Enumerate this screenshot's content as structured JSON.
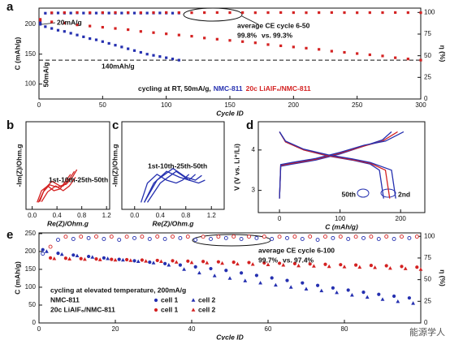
{
  "chart_data": [
    {
      "type": "scatter",
      "panel": "a",
      "xlabel": "Cycle ID",
      "ylabel": "C (mAh/g)",
      "y2label": "η (%)",
      "xlim": [
        0,
        300
      ],
      "xticks": [
        0,
        50,
        100,
        150,
        200,
        250,
        300
      ],
      "ylim": [
        75,
        227
      ],
      "yticks": [
        100,
        150,
        200
      ],
      "y2lim": [
        0,
        105
      ],
      "y2ticks": [
        0,
        25,
        50,
        75,
        100
      ],
      "refline": 140,
      "annotations": [
        "20mA/g",
        "50mA/g",
        "140mAh/g",
        "average CE cycle 6-50",
        "99.8%",
        "vs.",
        "99.3%",
        "cycling at RT, 50mA/g,"
      ],
      "series": [
        {
          "name": "NMC-811",
          "color": "#2530b0",
          "marker": "square",
          "x": [
            1,
            5,
            10,
            15,
            20,
            25,
            30,
            35,
            40,
            45,
            50,
            55,
            60,
            65,
            70,
            75,
            80,
            85,
            90,
            95,
            100,
            105,
            110
          ],
          "values": [
            200,
            196,
            193,
            190,
            188,
            185,
            182,
            179,
            176,
            174,
            171,
            168,
            165,
            162,
            159,
            156,
            153,
            150,
            148,
            146,
            144,
            142,
            140
          ]
        },
        {
          "name": "20c LiAlF₆/NMC-811",
          "color": "#d42222",
          "marker": "square",
          "x": [
            1,
            10,
            20,
            30,
            40,
            50,
            60,
            70,
            80,
            90,
            100,
            110,
            120,
            130,
            140,
            150,
            160,
            170,
            180,
            190,
            200,
            210,
            220,
            230,
            240,
            250,
            260,
            270,
            280,
            290,
            300
          ],
          "values": [
            206,
            204,
            202,
            199,
            197,
            195,
            193,
            191,
            188,
            186,
            184,
            182,
            180,
            177,
            175,
            173,
            171,
            169,
            166,
            164,
            162,
            160,
            158,
            155,
            153,
            151,
            149,
            147,
            144,
            142,
            140
          ]
        },
        {
          "color": "#2530b0",
          "marker": "square",
          "axis": "y2",
          "x": [
            1,
            5,
            10,
            15,
            20,
            25,
            30,
            35,
            40,
            45,
            50,
            55,
            60,
            65,
            70,
            75,
            80,
            85,
            90,
            95,
            100,
            105,
            110
          ],
          "values": [
            88,
            99.1,
            99.3,
            99.4,
            99.2,
            99.3,
            99.5,
            99.3,
            99.2,
            99.3,
            99.4,
            99.3,
            99.2,
            99.3,
            99.4,
            99.3,
            99.2,
            99.3,
            99.3,
            99.4,
            99.3,
            99.2,
            99.3
          ]
        },
        {
          "color": "#d42222",
          "marker": "square",
          "axis": "y2",
          "x": [
            1,
            10,
            20,
            30,
            40,
            50,
            60,
            70,
            80,
            90,
            100,
            110,
            120,
            130,
            140,
            150,
            160,
            170,
            180,
            190,
            200,
            210,
            220,
            230,
            240,
            250,
            260,
            270,
            280,
            290,
            300
          ],
          "values": [
            92,
            99.6,
            99.8,
            99.9,
            99.7,
            99.8,
            99.9,
            99.8,
            99.7,
            99.8,
            99.9,
            99.8,
            99.7,
            99.8,
            99.9,
            99.8,
            99.8,
            99.7,
            99.8,
            99.9,
            99.8,
            99.7,
            99.8,
            99.9,
            99.8,
            99.7,
            99.8,
            99.8,
            99.9,
            99.8,
            99.7
          ]
        }
      ]
    },
    {
      "type": "line",
      "panel": "b",
      "xlabel": "Re(Z)/Ohm.g",
      "ylabel": "-Im(Z)/Ohm.g",
      "xlim": [
        -0.1,
        1.25
      ],
      "xticks": [
        {
          "value": 0,
          "label": "0.0"
        },
        0.4,
        0.8,
        1.2
      ],
      "ylim": [
        -0.1,
        1.4
      ],
      "annotations": [
        "1st-10th-25th-50th"
      ],
      "series": [
        {
          "color": "#d42222",
          "x": [
            0.08,
            0.15,
            0.25,
            0.35,
            0.45,
            0.55,
            0.62
          ],
          "values": [
            0.02,
            0.22,
            0.3,
            0.22,
            0.25,
            0.4,
            0.5
          ]
        },
        {
          "color": "#d42222",
          "x": [
            0.1,
            0.18,
            0.28,
            0.4,
            0.5,
            0.6,
            0.68
          ],
          "values": [
            0.02,
            0.2,
            0.32,
            0.28,
            0.3,
            0.42,
            0.55
          ]
        },
        {
          "color": "#d42222",
          "x": [
            0.12,
            0.2,
            0.32,
            0.45,
            0.55,
            0.65,
            0.72
          ],
          "values": [
            0.03,
            0.25,
            0.38,
            0.3,
            0.33,
            0.45,
            0.58
          ]
        },
        {
          "color": "#d42222",
          "x": [
            0.15,
            0.25,
            0.38,
            0.5,
            0.6,
            0.7
          ],
          "values": [
            0.03,
            0.2,
            0.3,
            0.22,
            0.3,
            0.45
          ]
        }
      ]
    },
    {
      "type": "line",
      "panel": "c",
      "xlabel": "Re(Z)/Ohm.g",
      "ylabel": "-Im(Z)/Ohm.g",
      "xlim": [
        -0.2,
        1.4
      ],
      "xticks": [
        {
          "value": 0,
          "label": "0.0"
        },
        0.4,
        0.8,
        1.2
      ],
      "ylim": [
        -0.1,
        1.4
      ],
      "annotations": [
        "1st-10th-25th-50th"
      ],
      "series": [
        {
          "color": "#2530b0",
          "x": [
            0.1,
            0.2,
            0.35,
            0.5,
            0.65,
            0.75,
            0.85
          ],
          "values": [
            0.02,
            0.35,
            0.5,
            0.4,
            0.35,
            0.4,
            0.5
          ]
        },
        {
          "color": "#2530b0",
          "x": [
            0.15,
            0.3,
            0.5,
            0.7,
            0.85,
            0.95
          ],
          "values": [
            0.02,
            0.35,
            0.55,
            0.45,
            0.4,
            0.5
          ]
        },
        {
          "color": "#2530b0",
          "x": [
            0.15,
            0.35,
            0.6,
            0.8,
            0.95,
            1.05
          ],
          "values": [
            0.02,
            0.4,
            0.6,
            0.45,
            0.4,
            0.48
          ]
        },
        {
          "color": "#2530b0",
          "x": [
            0.2,
            0.4,
            0.65,
            0.85,
            1.0,
            1.1
          ],
          "values": [
            0.02,
            0.35,
            0.55,
            0.4,
            0.35,
            0.4
          ]
        }
      ]
    },
    {
      "type": "line",
      "panel": "d",
      "xlabel": "C (mAh/g)",
      "ylabel": "V (V vs. Li⁺/Li)",
      "xlim": [
        -35,
        240
      ],
      "xticks": [
        0,
        100,
        200
      ],
      "ylim": [
        2.45,
        4.7
      ],
      "yticks": [
        3,
        4
      ],
      "annotations": [
        "50th",
        "2nd"
      ],
      "series": [
        {
          "color": "#2530b0",
          "x": [
            0,
            2,
            20,
            60,
            100,
            140,
            170,
            185
          ],
          "values": [
            2.8,
            3.6,
            3.65,
            3.75,
            3.9,
            4.1,
            4.25,
            4.45
          ]
        },
        {
          "color": "#d42222",
          "x": [
            0,
            2,
            20,
            60,
            100,
            140,
            170,
            195
          ],
          "values": [
            2.8,
            3.62,
            3.67,
            3.77,
            3.92,
            4.1,
            4.22,
            4.45
          ]
        },
        {
          "color": "#2530b0",
          "x": [
            0,
            2,
            20,
            60,
            100,
            140,
            175,
            205
          ],
          "values": [
            2.8,
            3.64,
            3.69,
            3.79,
            3.94,
            4.12,
            4.22,
            4.45
          ]
        },
        {
          "color": "#2530b0",
          "x": [
            0,
            10,
            40,
            80,
            120,
            150,
            165,
            172
          ],
          "values": [
            4.45,
            4.2,
            4.0,
            3.85,
            3.75,
            3.65,
            3.5,
            2.8
          ]
        },
        {
          "color": "#d42222",
          "x": [
            0,
            10,
            40,
            80,
            120,
            150,
            175,
            182
          ],
          "values": [
            4.45,
            4.2,
            4.0,
            3.86,
            3.76,
            3.67,
            3.5,
            2.8
          ]
        },
        {
          "color": "#2530b0",
          "x": [
            0,
            10,
            40,
            80,
            120,
            150,
            185,
            192
          ],
          "values": [
            4.45,
            4.22,
            4.02,
            3.88,
            3.78,
            3.69,
            3.5,
            2.8
          ]
        }
      ]
    },
    {
      "type": "scatter",
      "panel": "e",
      "xlabel": "Cycle ID",
      "ylabel": "C (mAh/g)",
      "y2label": "η (%)",
      "xlim": [
        0,
        100
      ],
      "xticks": [
        0,
        20,
        40,
        60,
        80
      ],
      "ylim": [
        0,
        252
      ],
      "yticks": [
        0,
        50,
        100,
        150,
        200,
        250
      ],
      "y2lim": [
        0,
        104
      ],
      "y2ticks": [
        0,
        25,
        50,
        75,
        100
      ],
      "annotations": [
        "cycling at elevated temperature, 200mA/g",
        "NMC-811",
        "20c LiAlF₆/NMC-811",
        "average CE cycle 6-100",
        "99.7%",
        "vs.",
        "97.4%"
      ],
      "series": [
        {
          "name": "cell 1",
          "color": "#2530b0",
          "marker": "circle",
          "x": [
            1,
            5,
            9,
            13,
            17,
            21,
            25,
            29,
            33,
            37,
            41,
            45,
            49,
            53,
            57,
            61,
            65,
            69,
            73,
            77,
            81,
            85,
            89,
            93,
            97
          ],
          "values": [
            205,
            195,
            190,
            186,
            182,
            178,
            174,
            170,
            166,
            162,
            157,
            152,
            147,
            140,
            133,
            126,
            119,
            112,
            105,
            98,
            92,
            86,
            80,
            75,
            70
          ]
        },
        {
          "name": "cell 2",
          "color": "#2530b0",
          "marker": "triangle",
          "x": [
            2,
            6,
            10,
            14,
            18,
            22,
            26,
            30,
            34,
            38,
            42,
            46,
            50,
            54,
            58,
            62,
            66,
            70,
            74,
            78,
            82,
            86,
            90,
            94,
            98
          ],
          "values": [
            200,
            192,
            188,
            184,
            180,
            176,
            172,
            168,
            162,
            150,
            140,
            132,
            125,
            118,
            112,
            106,
            100,
            95,
            90,
            85,
            78,
            72,
            66,
            60,
            55
          ]
        },
        {
          "name": "cell 1",
          "color": "#d42222",
          "marker": "circle",
          "x": [
            3,
            7,
            11,
            15,
            19,
            23,
            27,
            31,
            35,
            39,
            43,
            47,
            51,
            55,
            59,
            63,
            67,
            71,
            75,
            79,
            83,
            87,
            91,
            95,
            99
          ],
          "values": [
            182,
            181,
            180,
            179,
            178,
            177,
            176,
            175,
            174,
            173,
            172,
            171,
            170,
            169,
            168,
            167,
            166,
            165,
            164,
            163,
            162,
            161,
            160,
            158,
            156
          ]
        },
        {
          "name": "cell 2",
          "color": "#d42222",
          "marker": "triangle",
          "x": [
            4,
            8,
            12,
            16,
            20,
            24,
            28,
            32,
            36,
            40,
            44,
            48,
            52,
            56,
            60,
            64,
            68,
            72,
            76,
            80,
            84,
            88,
            92,
            96,
            100
          ],
          "values": [
            180,
            179,
            178,
            177,
            176,
            175,
            173,
            172,
            170,
            169,
            168,
            167,
            165,
            164,
            163,
            162,
            160,
            159,
            158,
            157,
            156,
            155,
            153,
            152,
            150
          ]
        },
        {
          "color": "#2530b0",
          "marker": "circle-open",
          "axis": "y2",
          "x": [
            1,
            5,
            9,
            13,
            17,
            21,
            25,
            29,
            33,
            37,
            41,
            45,
            49,
            53,
            57,
            61,
            65,
            69,
            73,
            77,
            81,
            85,
            89,
            93,
            97
          ],
          "values": [
            80,
            96,
            97,
            98,
            97,
            96,
            98,
            97,
            97,
            98,
            96,
            97,
            98,
            97,
            98,
            97,
            98,
            97,
            96,
            98,
            97,
            98,
            97,
            97,
            98
          ]
        },
        {
          "color": "#d42222",
          "marker": "circle-open",
          "axis": "y2",
          "x": [
            3,
            7,
            11,
            15,
            19,
            23,
            27,
            31,
            35,
            39,
            43,
            47,
            51,
            55,
            59,
            63,
            67,
            71,
            75,
            79,
            83,
            87,
            91,
            95,
            99
          ],
          "values": [
            88,
            99.6,
            99.7,
            99.8,
            99.7,
            99.6,
            99.7,
            99.8,
            99.7,
            99.7,
            99.6,
            99.7,
            99.8,
            99.7,
            99.7,
            99.6,
            99.7,
            99.8,
            99.7,
            99.7,
            99.6,
            99.7,
            99.8,
            99.7,
            99.7
          ]
        }
      ]
    }
  ],
  "watermark": "能源学人"
}
